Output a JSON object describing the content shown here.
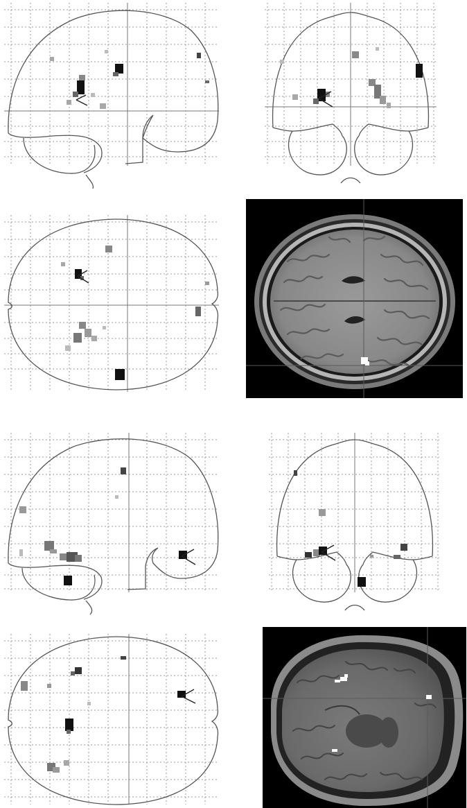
{
  "figure": {
    "panels": [
      {
        "id": "glass-sag-1",
        "type": "glass-brain",
        "view": "sagittal"
      },
      {
        "id": "glass-cor-1",
        "type": "glass-brain",
        "view": "coronal"
      },
      {
        "id": "glass-ax-1",
        "type": "glass-brain",
        "view": "axial"
      },
      {
        "id": "mri-ax-1",
        "type": "mri-slice",
        "view": "axial"
      },
      {
        "id": "glass-sag-2",
        "type": "glass-brain",
        "view": "sagittal"
      },
      {
        "id": "glass-cor-2",
        "type": "glass-brain",
        "view": "coronal"
      },
      {
        "id": "glass-ax-2",
        "type": "glass-brain",
        "view": "axial"
      },
      {
        "id": "mri-ax-2",
        "type": "mri-slice",
        "view": "axial"
      }
    ],
    "colors": {
      "outline": "#555555",
      "grid": "#9a9a9a",
      "blob_dark": "#111111",
      "blob_mid": "#666666",
      "blob_light": "#a8a8a8",
      "mri_background": "#000000",
      "mri_brain": "#8a8a8a",
      "activation_marker": "#ffffff"
    }
  }
}
